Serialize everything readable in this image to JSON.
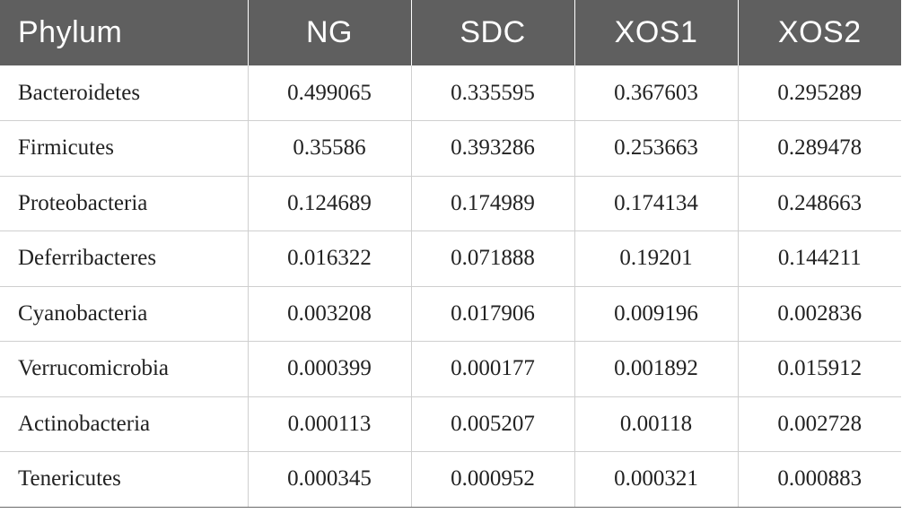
{
  "table": {
    "headers": [
      "Phylum",
      "NG",
      "SDC",
      "XOS1",
      "XOS2"
    ],
    "rows": [
      {
        "phylum": "Bacteroidetes",
        "values": [
          "0.499065",
          "0.335595",
          "0.367603",
          "0.295289"
        ]
      },
      {
        "phylum": "Firmicutes",
        "values": [
          "0.35586",
          "0.393286",
          "0.253663",
          "0.289478"
        ]
      },
      {
        "phylum": "Proteobacteria",
        "values": [
          "0.124689",
          "0.174989",
          "0.174134",
          "0.248663"
        ]
      },
      {
        "phylum": "Deferribacteres",
        "values": [
          "0.016322",
          "0.071888",
          "0.19201",
          "0.144211"
        ]
      },
      {
        "phylum": "Cyanobacteria",
        "values": [
          "0.003208",
          "0.017906",
          "0.009196",
          "0.002836"
        ]
      },
      {
        "phylum": "Verrucomicrobia",
        "values": [
          "0.000399",
          "0.000177",
          "0.001892",
          "0.015912"
        ]
      },
      {
        "phylum": "Actinobacteria",
        "values": [
          "0.000113",
          "0.005207",
          "0.00118",
          "0.002728"
        ]
      },
      {
        "phylum": "Tenericutes",
        "values": [
          "0.000345",
          "0.000952",
          "0.000321",
          "0.000883"
        ]
      }
    ],
    "colors": {
      "header_background": "#5f5f5f",
      "header_text": "#ffffff",
      "grid_line": "#cfcfcf"
    }
  }
}
